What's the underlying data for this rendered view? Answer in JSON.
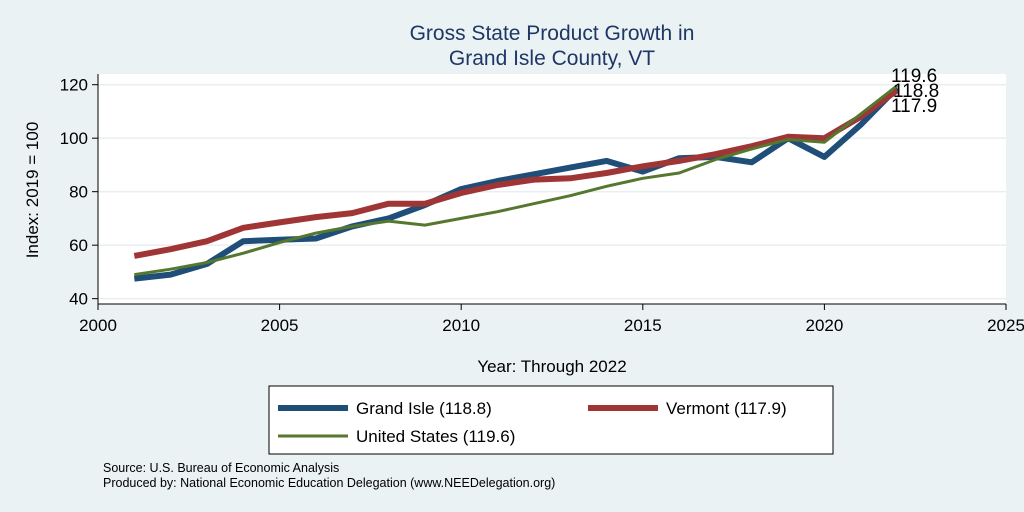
{
  "chart_data": {
    "type": "line",
    "title": [
      "Gross State Product Growth in",
      "Grand Isle County, VT"
    ],
    "xlabel": "Year: Through 2022",
    "ylabel": "Index: 2019 = 100",
    "xlim": [
      2000,
      2025
    ],
    "ylim": [
      38,
      124
    ],
    "xticks": [
      2000,
      2005,
      2010,
      2015,
      2020,
      2025
    ],
    "yticks": [
      40,
      60,
      80,
      100,
      120
    ],
    "grid": true,
    "legend_position": "bottom",
    "x": [
      2001,
      2002,
      2003,
      2004,
      2005,
      2006,
      2007,
      2008,
      2009,
      2010,
      2011,
      2012,
      2013,
      2014,
      2015,
      2016,
      2017,
      2018,
      2019,
      2020,
      2021,
      2022
    ],
    "series": [
      {
        "name": "Grand Isle  (118.8)",
        "color": "#1f4e79",
        "values": [
          47.5,
          49,
          53,
          61.5,
          62,
          62.5,
          67,
          70,
          75,
          81,
          84,
          86.5,
          89,
          91.5,
          87.5,
          92.5,
          93,
          91,
          100,
          93,
          105,
          118.8
        ]
      },
      {
        "name": "Vermont (117.9)",
        "color": "#a03535",
        "values": [
          56,
          58.5,
          61.5,
          66.5,
          68.5,
          70.5,
          72,
          75.5,
          75.5,
          79.5,
          82.5,
          84.5,
          85,
          87,
          89.5,
          91.5,
          94,
          97,
          100.5,
          100,
          108,
          117.9
        ]
      },
      {
        "name": "United States (119.6)",
        "color": "#55772e",
        "values": [
          49,
          51,
          53.5,
          57,
          61,
          64.5,
          67,
          69,
          67.5,
          70,
          72.5,
          75.5,
          78.5,
          82,
          85,
          87,
          92,
          96,
          99.5,
          98.5,
          109,
          119.6
        ]
      }
    ],
    "end_labels": [
      "119.6",
      "118.8",
      "117.9"
    ]
  },
  "source_note": "Source: U.S. Bureau of Economic Analysis",
  "produced_note": "Produced by: National Economic Education Delegation (www.NEEDelegation.org)"
}
